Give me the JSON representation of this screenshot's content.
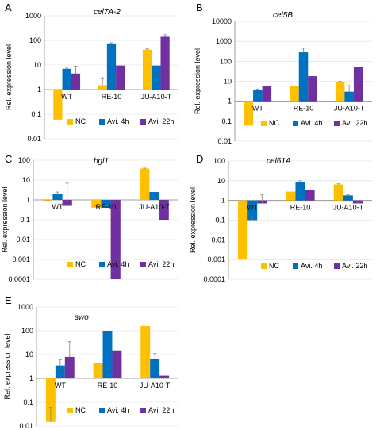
{
  "colors": {
    "NC": "#ffc000",
    "Avi. 4h": "#0070c0",
    "Avi. 22h": "#7030a0"
  },
  "chart_data": [
    {
      "type": "bar",
      "panel": "A",
      "title": "cel7A-2",
      "scale": "log",
      "ylabel": "Rel. expression level",
      "yticks": [
        "0.01",
        "0.1",
        "1",
        "10",
        "100",
        "1000"
      ],
      "ylim": [
        0.01,
        1000
      ],
      "categories": [
        "WT",
        "RE-10",
        "JU-A10-T"
      ],
      "series": [
        {
          "name": "NC",
          "values": [
            0.06,
            1.5,
            42
          ],
          "err_high": [
            0.06,
            3,
            45
          ]
        },
        {
          "name": "Avi. 4h",
          "values": [
            7,
            75,
            9.5
          ],
          "err_high": [
            7.5,
            80,
            9.5
          ]
        },
        {
          "name": "Avi. 22h",
          "values": [
            4.5,
            9.5,
            140
          ],
          "err_high": [
            9,
            9.5,
            170
          ]
        }
      ],
      "legend": [
        "NC",
        "Avi. 4h",
        "Avi. 22h"
      ],
      "legend_position": "bottom-right"
    },
    {
      "type": "bar",
      "panel": "B",
      "title": "cel5B",
      "scale": "log",
      "ylabel": "Rel. expression level",
      "yticks": [
        "0.01",
        "0.1",
        "1",
        "10",
        "100",
        "1000",
        "10000"
      ],
      "ylim": [
        0.01,
        10000
      ],
      "categories": [
        "WT",
        "RE-10",
        "JU-A10-T"
      ],
      "series": [
        {
          "name": "NC",
          "values": [
            0.06,
            6,
            9.5
          ],
          "err_high": [
            0.06,
            6,
            10
          ]
        },
        {
          "name": "Avi. 4h",
          "values": [
            3.5,
            280,
            3
          ],
          "err_high": [
            4,
            450,
            6
          ]
        },
        {
          "name": "Avi. 22h",
          "values": [
            6,
            18,
            50
          ],
          "err_high": [
            6,
            18,
            50
          ]
        }
      ],
      "legend": [
        "NC",
        "Avi. 4h",
        "Avi. 22h"
      ],
      "legend_position": "bottom-right"
    },
    {
      "type": "bar",
      "panel": "C",
      "title": "bgl1",
      "scale": "log",
      "ylabel": "Rel. expression level",
      "yticks": [
        "0.0001",
        "0.001",
        "0.01",
        "0.1",
        "1",
        "10",
        "100"
      ],
      "ylim": [
        0.0001,
        100
      ],
      "categories": [
        "WT",
        "RE-10",
        "JU-A10-T"
      ],
      "series": [
        {
          "name": "NC",
          "values": [
            0.9,
            0.4,
            38
          ],
          "err_high": [
            1.0,
            0.5,
            40
          ]
        },
        {
          "name": "Avi. 4h",
          "values": [
            2,
            0.4,
            2.5
          ],
          "err_high": [
            2.5,
            0.5,
            2.5
          ]
        },
        {
          "name": "Avi. 22h",
          "values": [
            0.5,
            0.0001,
            0.1
          ],
          "err_high": [
            7,
            0.0001,
            0.1
          ]
        }
      ],
      "legend": [
        "NC",
        "Avi. 4h",
        "Avi. 22h"
      ],
      "legend_position": "bottom-right"
    },
    {
      "type": "bar",
      "panel": "D",
      "title": "cel61A",
      "scale": "log",
      "ylabel": "Rel. expression level",
      "yticks": [
        "0.0001",
        "0.001",
        "0.01",
        "0.1",
        "1",
        "10",
        "100"
      ],
      "ylim": [
        0.0001,
        100
      ],
      "categories": [
        "WT",
        "RE-10",
        "JU-A10-T"
      ],
      "series": [
        {
          "name": "NC",
          "values": [
            0.001,
            2.8,
            6.5
          ],
          "err_high": [
            0.001,
            2.8,
            7
          ]
        },
        {
          "name": "Avi. 4h",
          "values": [
            0.1,
            9,
            1.8
          ],
          "err_high": [
            0.15,
            10,
            2
          ]
        },
        {
          "name": "Avi. 22h",
          "values": [
            0.7,
            3.5,
            0.7
          ],
          "err_high": [
            2,
            3.5,
            0.8
          ]
        }
      ],
      "legend": [
        "NC",
        "Avi. 4h",
        "Avi. 22h"
      ],
      "legend_position": "bottom-right"
    },
    {
      "type": "bar",
      "panel": "E",
      "title": "swo",
      "scale": "log",
      "ylabel": "Rel. expression level",
      "yticks": [
        "0.01",
        "0.1",
        "1",
        "10",
        "100",
        "1000"
      ],
      "ylim": [
        0.01,
        1000
      ],
      "categories": [
        "WT",
        "RE-10",
        "JU-A10-T"
      ],
      "series": [
        {
          "name": "NC",
          "values": [
            0.015,
            4.5,
            160
          ],
          "err_high": [
            0.06,
            4.5,
            160
          ]
        },
        {
          "name": "Avi. 4h",
          "values": [
            3.5,
            100,
            6.5
          ],
          "err_high": [
            6,
            100,
            11
          ]
        },
        {
          "name": "Avi. 22h",
          "values": [
            8,
            15,
            1.3
          ],
          "err_high": [
            35,
            15,
            1.3
          ]
        }
      ],
      "legend": [
        "NC",
        "Avi. 4h",
        "Avi. 22h"
      ],
      "legend_position": "bottom-right"
    }
  ]
}
